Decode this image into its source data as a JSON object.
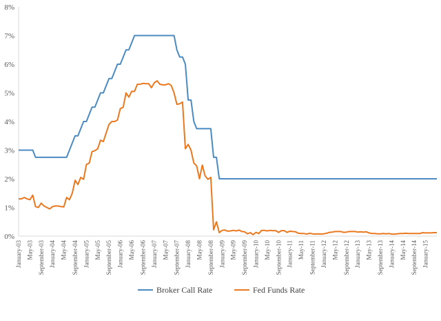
{
  "chart_data": {
    "type": "line",
    "title": "",
    "xlabel": "",
    "ylabel": "",
    "ylim": [
      0,
      8
    ],
    "y_ticks": [
      "0%",
      "1%",
      "2%",
      "3%",
      "4%",
      "5%",
      "6%",
      "7%",
      "8%"
    ],
    "x_tick_labels": [
      "January-03",
      "May-03",
      "September-03",
      "January-04",
      "May-04",
      "September-04",
      "January-05",
      "May-05",
      "September-05",
      "January-06",
      "May-06",
      "September-06",
      "January-07",
      "May-07",
      "September-07",
      "January-08",
      "May-08",
      "September-08",
      "January-09",
      "May-09",
      "September-09",
      "January-10",
      "May-10",
      "September-10",
      "January-11",
      "May-11",
      "September-11",
      "January-12",
      "May-12",
      "September-12",
      "January-13",
      "May-13",
      "September-13",
      "January-14",
      "May-14",
      "September-14",
      "January-15"
    ],
    "x_start": "January-03",
    "x_end": "May-15",
    "grid": false,
    "legend_position": "bottom",
    "series": [
      {
        "name": "Broker Call Rate",
        "color": "#4a8ac2",
        "points": [
          [
            "January-03",
            3.0
          ],
          [
            "June-03",
            3.0
          ],
          [
            "July-03",
            2.75
          ],
          [
            "June-04",
            2.75
          ],
          [
            "July-04",
            3.0
          ],
          [
            "August-04",
            3.25
          ],
          [
            "September-04",
            3.5
          ],
          [
            "October-04",
            3.5
          ],
          [
            "November-04",
            3.75
          ],
          [
            "December-04",
            4.0
          ],
          [
            "January-05",
            4.0
          ],
          [
            "February-05",
            4.25
          ],
          [
            "March-05",
            4.5
          ],
          [
            "April-05",
            4.5
          ],
          [
            "May-05",
            4.75
          ],
          [
            "June-05",
            5.0
          ],
          [
            "July-05",
            5.0
          ],
          [
            "August-05",
            5.25
          ],
          [
            "September-05",
            5.5
          ],
          [
            "October-05",
            5.5
          ],
          [
            "November-05",
            5.75
          ],
          [
            "December-05",
            6.0
          ],
          [
            "January-06",
            6.0
          ],
          [
            "February-06",
            6.25
          ],
          [
            "March-06",
            6.5
          ],
          [
            "April-06",
            6.5
          ],
          [
            "May-06",
            6.75
          ],
          [
            "June-06",
            7.0
          ],
          [
            "August-07",
            7.0
          ],
          [
            "September-07",
            6.5
          ],
          [
            "October-07",
            6.25
          ],
          [
            "November-07",
            6.25
          ],
          [
            "December-07",
            6.0
          ],
          [
            "January-08",
            4.75
          ],
          [
            "February-08",
            4.75
          ],
          [
            "March-08",
            4.0
          ],
          [
            "April-08",
            3.75
          ],
          [
            "September-08",
            3.75
          ],
          [
            "October-08",
            2.75
          ],
          [
            "November-08",
            2.75
          ],
          [
            "December-08",
            2.0
          ],
          [
            "May-15",
            2.0
          ]
        ]
      },
      {
        "name": "Fed Funds Rate",
        "color": "#e9781f",
        "points": [
          [
            "January-03",
            1.3
          ],
          [
            "February-03",
            1.3
          ],
          [
            "March-03",
            1.35
          ],
          [
            "April-03",
            1.3
          ],
          [
            "May-03",
            1.27
          ],
          [
            "June-03",
            1.43
          ],
          [
            "July-03",
            1.03
          ],
          [
            "August-03",
            1.0
          ],
          [
            "September-03",
            1.15
          ],
          [
            "October-03",
            1.05
          ],
          [
            "November-03",
            1.0
          ],
          [
            "December-03",
            0.95
          ],
          [
            "January-04",
            1.03
          ],
          [
            "February-04",
            1.05
          ],
          [
            "March-04",
            1.05
          ],
          [
            "April-04",
            1.03
          ],
          [
            "May-04",
            1.02
          ],
          [
            "June-04",
            1.35
          ],
          [
            "July-04",
            1.27
          ],
          [
            "August-04",
            1.5
          ],
          [
            "September-04",
            1.95
          ],
          [
            "October-04",
            1.8
          ],
          [
            "November-04",
            2.05
          ],
          [
            "December-04",
            1.98
          ],
          [
            "January-05",
            2.5
          ],
          [
            "February-05",
            2.55
          ],
          [
            "March-05",
            2.95
          ],
          [
            "April-05",
            2.98
          ],
          [
            "May-05",
            3.05
          ],
          [
            "June-05",
            3.35
          ],
          [
            "July-05",
            3.3
          ],
          [
            "August-05",
            3.6
          ],
          [
            "September-05",
            3.9
          ],
          [
            "October-05",
            4.0
          ],
          [
            "November-05",
            4.0
          ],
          [
            "December-05",
            4.05
          ],
          [
            "January-06",
            4.45
          ],
          [
            "February-06",
            4.5
          ],
          [
            "March-06",
            5.0
          ],
          [
            "April-06",
            4.85
          ],
          [
            "May-06",
            5.05
          ],
          [
            "June-06",
            5.05
          ],
          [
            "July-06",
            5.3
          ],
          [
            "August-06",
            5.3
          ],
          [
            "September-06",
            5.33
          ],
          [
            "October-06",
            5.32
          ],
          [
            "November-06",
            5.32
          ],
          [
            "December-06",
            5.18
          ],
          [
            "January-07",
            5.35
          ],
          [
            "February-07",
            5.42
          ],
          [
            "March-07",
            5.3
          ],
          [
            "April-07",
            5.28
          ],
          [
            "May-07",
            5.28
          ],
          [
            "June-07",
            5.32
          ],
          [
            "July-07",
            5.26
          ],
          [
            "August-07",
            5.0
          ],
          [
            "September-07",
            4.6
          ],
          [
            "October-07",
            4.62
          ],
          [
            "November-07",
            4.68
          ],
          [
            "December-07",
            3.05
          ],
          [
            "January-08",
            3.2
          ],
          [
            "February-08",
            3.0
          ],
          [
            "March-08",
            2.55
          ],
          [
            "April-08",
            2.45
          ],
          [
            "May-08",
            2.0
          ],
          [
            "June-08",
            2.48
          ],
          [
            "July-08",
            2.1
          ],
          [
            "August-08",
            1.98
          ],
          [
            "September-08",
            2.05
          ],
          [
            "October-08",
            0.22
          ],
          [
            "November-08",
            0.5
          ],
          [
            "December-08",
            0.12
          ],
          [
            "January-09",
            0.2
          ],
          [
            "February-09",
            0.21
          ],
          [
            "March-09",
            0.17
          ],
          [
            "April-09",
            0.18
          ],
          [
            "May-09",
            0.2
          ],
          [
            "June-09",
            0.18
          ],
          [
            "July-09",
            0.21
          ],
          [
            "August-09",
            0.16
          ],
          [
            "September-09",
            0.15
          ],
          [
            "October-09",
            0.08
          ],
          [
            "November-09",
            0.12
          ],
          [
            "December-09",
            0.05
          ],
          [
            "January-10",
            0.13
          ],
          [
            "February-10",
            0.09
          ],
          [
            "March-10",
            0.2
          ],
          [
            "April-10",
            0.2
          ],
          [
            "May-10",
            0.18
          ],
          [
            "June-10",
            0.2
          ],
          [
            "July-10",
            0.19
          ],
          [
            "August-10",
            0.19
          ],
          [
            "September-10",
            0.13
          ],
          [
            "October-10",
            0.19
          ],
          [
            "November-10",
            0.19
          ],
          [
            "December-10",
            0.13
          ],
          [
            "January-11",
            0.17
          ],
          [
            "February-11",
            0.16
          ],
          [
            "March-11",
            0.15
          ],
          [
            "April-11",
            0.1
          ],
          [
            "May-11",
            0.09
          ],
          [
            "June-11",
            0.09
          ],
          [
            "July-11",
            0.07
          ],
          [
            "August-11",
            0.1
          ],
          [
            "September-11",
            0.08
          ],
          [
            "October-11",
            0.07
          ],
          [
            "November-11",
            0.08
          ],
          [
            "December-11",
            0.07
          ],
          [
            "January-12",
            0.08
          ],
          [
            "February-12",
            0.1
          ],
          [
            "March-12",
            0.13
          ],
          [
            "April-12",
            0.14
          ],
          [
            "May-12",
            0.16
          ],
          [
            "June-12",
            0.16
          ],
          [
            "July-12",
            0.16
          ],
          [
            "August-12",
            0.13
          ],
          [
            "September-12",
            0.14
          ],
          [
            "October-12",
            0.16
          ],
          [
            "November-12",
            0.16
          ],
          [
            "December-12",
            0.16
          ],
          [
            "January-13",
            0.14
          ],
          [
            "February-13",
            0.15
          ],
          [
            "March-13",
            0.14
          ],
          [
            "April-13",
            0.15
          ],
          [
            "May-13",
            0.11
          ],
          [
            "June-13",
            0.09
          ],
          [
            "July-13",
            0.09
          ],
          [
            "August-13",
            0.08
          ],
          [
            "September-13",
            0.08
          ],
          [
            "October-13",
            0.09
          ],
          [
            "November-13",
            0.08
          ],
          [
            "December-13",
            0.09
          ],
          [
            "January-14",
            0.07
          ],
          [
            "February-14",
            0.07
          ],
          [
            "March-14",
            0.08
          ],
          [
            "April-14",
            0.09
          ],
          [
            "May-14",
            0.09
          ],
          [
            "June-14",
            0.1
          ],
          [
            "July-14",
            0.09
          ],
          [
            "August-14",
            0.09
          ],
          [
            "September-14",
            0.09
          ],
          [
            "October-14",
            0.09
          ],
          [
            "November-14",
            0.09
          ],
          [
            "December-14",
            0.12
          ],
          [
            "January-15",
            0.11
          ],
          [
            "February-15",
            0.11
          ],
          [
            "March-15",
            0.11
          ],
          [
            "April-15",
            0.12
          ],
          [
            "May-15",
            0.12
          ]
        ]
      }
    ]
  }
}
